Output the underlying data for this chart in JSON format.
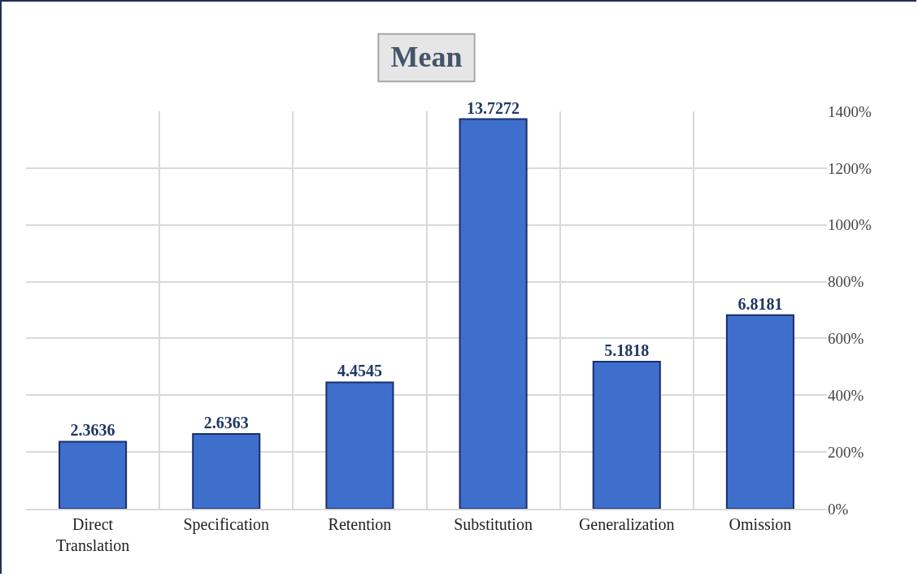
{
  "chart_data": {
    "type": "bar",
    "title": "Mean",
    "categories": [
      "Direct Translation",
      "Specification",
      "Retention",
      "Substitution",
      "Generalization",
      "Omission"
    ],
    "values": [
      2.3636,
      2.6363,
      4.4545,
      13.7272,
      5.1818,
      6.8181
    ],
    "color": "#3f6fcc",
    "ylim": [
      0,
      14
    ],
    "yticks": [
      {
        "value": 0,
        "label": "0%"
      },
      {
        "value": 2,
        "label": "200%"
      },
      {
        "value": 4,
        "label": "400%"
      },
      {
        "value": 6,
        "label": "600%"
      },
      {
        "value": 8,
        "label": "800%"
      },
      {
        "value": 10,
        "label": "1000%"
      },
      {
        "value": 12,
        "label": "1200%"
      },
      {
        "value": 14,
        "label": "1400%"
      }
    ],
    "grid": true,
    "data_labels": true
  }
}
